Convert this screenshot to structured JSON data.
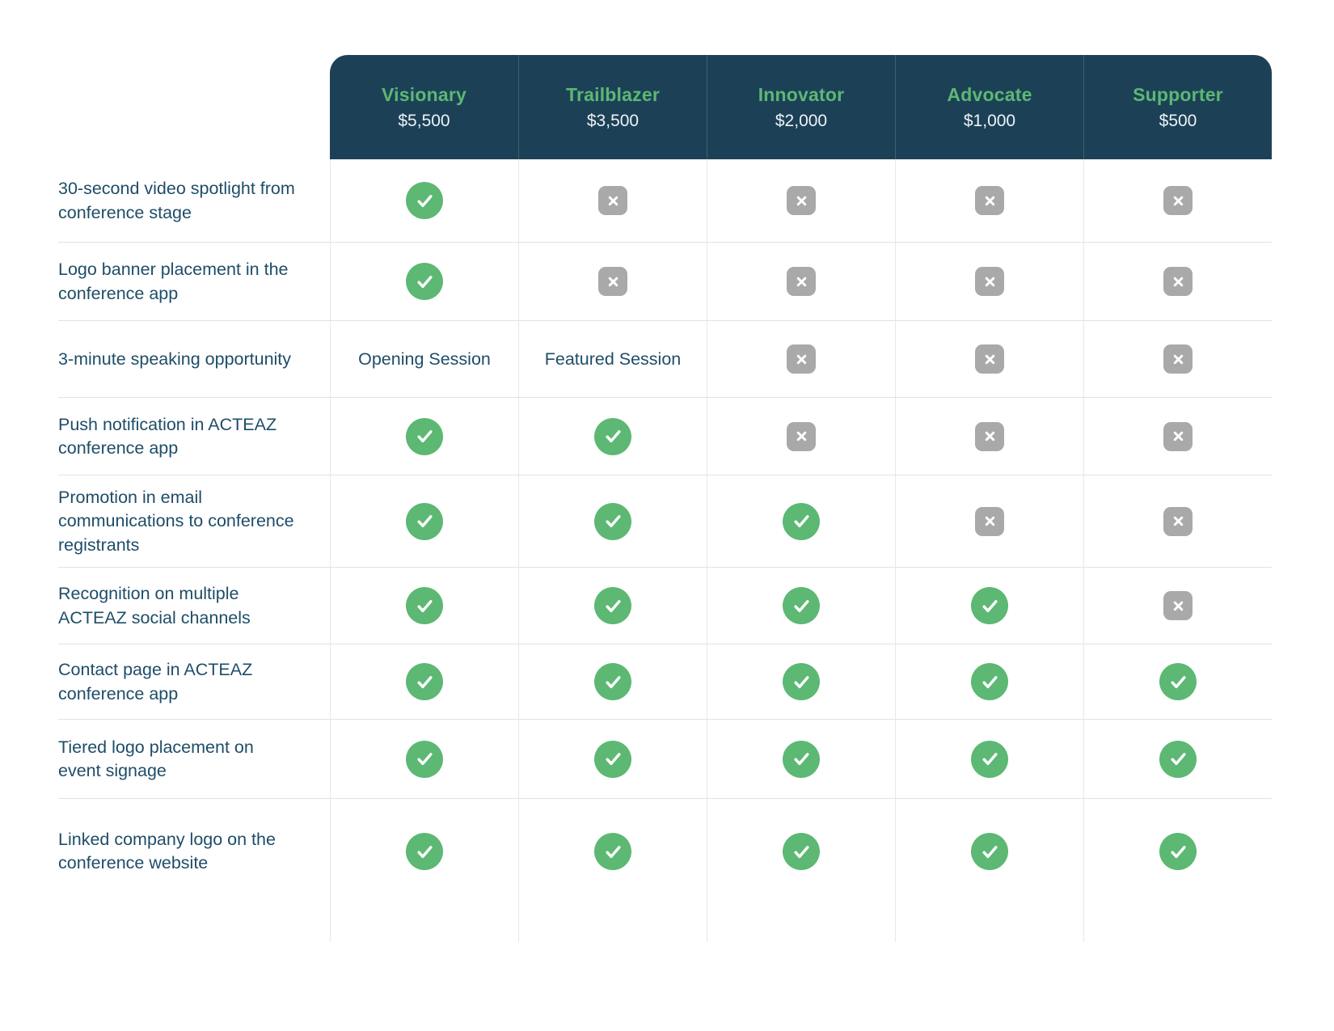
{
  "colors": {
    "header_bg": "#1c4157",
    "tier_name_green": "#5cb873",
    "price_text": "#eef2f5",
    "label_text": "#1e4d68",
    "check_green": "#5cb873",
    "x_gray": "#a9a9a9"
  },
  "table": {
    "tiers": [
      {
        "name": "Visionary",
        "price": "$5,500"
      },
      {
        "name": "Trailblazer",
        "price": "$3,500"
      },
      {
        "name": "Innovator",
        "price": "$2,000"
      },
      {
        "name": "Advocate",
        "price": "$1,000"
      },
      {
        "name": "Supporter",
        "price": "$500"
      }
    ],
    "rows": [
      {
        "label": "30-second video spotlight from conference stage",
        "cells": [
          "check",
          "x",
          "x",
          "x",
          "x"
        ]
      },
      {
        "label": "Logo banner placement in the conference app",
        "cells": [
          "check",
          "x",
          "x",
          "x",
          "x"
        ]
      },
      {
        "label": "3-minute speaking opportunity",
        "cells": [
          "Opening Session",
          "Featured Session",
          "x",
          "x",
          "x"
        ]
      },
      {
        "label": "Push notification in ACTEAZ conference app",
        "cells": [
          "check",
          "check",
          "x",
          "x",
          "x"
        ]
      },
      {
        "label": "Promotion in email communications to conference registrants",
        "cells": [
          "check",
          "check",
          "check",
          "x",
          "x"
        ]
      },
      {
        "label": "Recognition on multiple ACTEAZ social channels",
        "cells": [
          "check",
          "check",
          "check",
          "check",
          "x"
        ]
      },
      {
        "label": "Contact page in ACTEAZ conference app",
        "cells": [
          "check",
          "check",
          "check",
          "check",
          "check"
        ]
      },
      {
        "label": "Tiered logo placement on event signage",
        "cells": [
          "check",
          "check",
          "check",
          "check",
          "check"
        ]
      },
      {
        "label": "Linked company logo on the conference website",
        "cells": [
          "check",
          "check",
          "check",
          "check",
          "check"
        ]
      }
    ]
  },
  "icons": {
    "check": "check-icon",
    "x": "x-icon"
  }
}
